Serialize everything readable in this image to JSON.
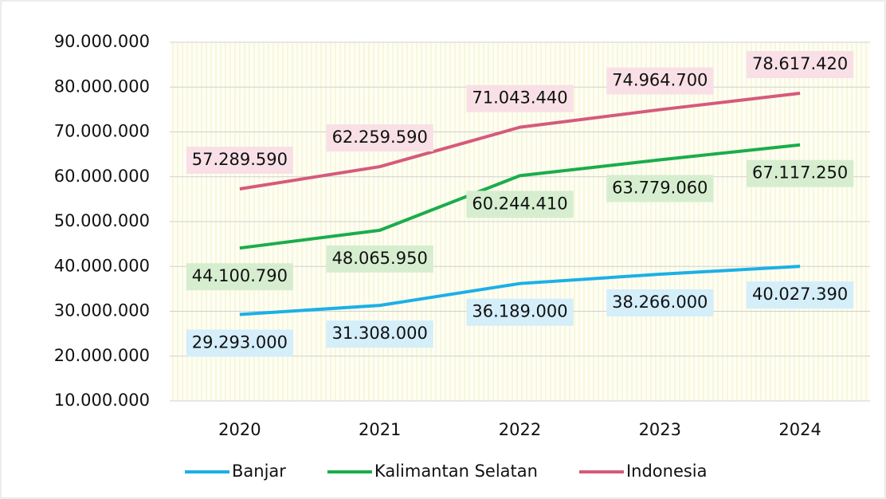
{
  "chart_data": {
    "type": "line",
    "categories": [
      "2020",
      "2021",
      "2022",
      "2023",
      "2024"
    ],
    "series": [
      {
        "name": "Banjar",
        "color": "#1bb0e6",
        "label_bg": "#d4eefa",
        "values": [
          29293000,
          31308000,
          36189000,
          38266000,
          40027390
        ],
        "value_labels": [
          "29.293.000",
          "31.308.000",
          "36.189.000",
          "38.266.000",
          "40.027.390"
        ]
      },
      {
        "name": "Kalimantan Selatan",
        "color": "#1aad4b",
        "label_bg": "#d6eecf",
        "values": [
          44100790,
          48065950,
          60244410,
          63779060,
          67117250
        ],
        "value_labels": [
          "44.100.790",
          "48.065.950",
          "60.244.410",
          "63.779.060",
          "67.117.250"
        ]
      },
      {
        "name": "Indonesia",
        "color": "#d55a7c",
        "label_bg": "#f8e0e6",
        "values": [
          57289590,
          62259590,
          71043440,
          74964700,
          78617420
        ],
        "value_labels": [
          "57.289.590",
          "62.259.590",
          "71.043.440",
          "74.964.700",
          "78.617.420"
        ]
      }
    ],
    "ylim": [
      10000000,
      90000000
    ],
    "yticks": [
      {
        "value": 10000000,
        "label": "10.000.000"
      },
      {
        "value": 20000000,
        "label": "20.000.000"
      },
      {
        "value": 30000000,
        "label": "30.000.000"
      },
      {
        "value": 40000000,
        "label": "40.000.000"
      },
      {
        "value": 50000000,
        "label": "50.000.000"
      },
      {
        "value": 60000000,
        "label": "60.000.000"
      },
      {
        "value": 70000000,
        "label": "70.000.000"
      },
      {
        "value": 80000000,
        "label": "80.000.000"
      },
      {
        "value": 90000000,
        "label": "90.000.000"
      }
    ],
    "grid": true,
    "legend": "bottom"
  }
}
